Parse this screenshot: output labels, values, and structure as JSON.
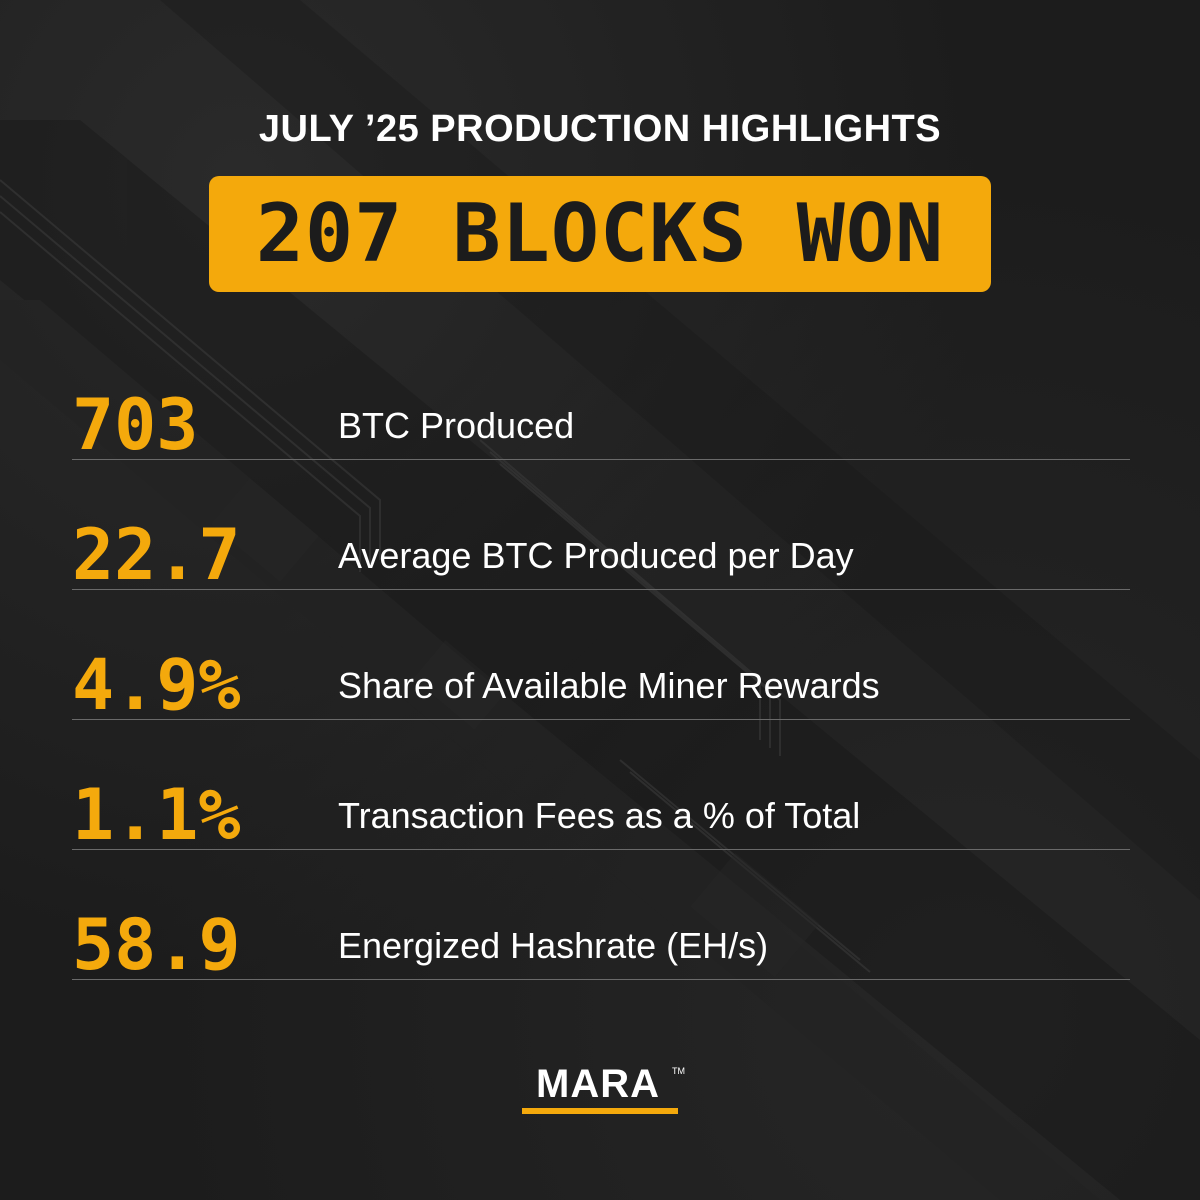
{
  "header": {
    "title": "JULY ’25 PRODUCTION HIGHLIGHTS",
    "banner": "207 BLOCKS WON"
  },
  "stats": [
    {
      "value": "703",
      "label": "BTC Produced"
    },
    {
      "value": "22.7",
      "label": "Average BTC Produced per Day"
    },
    {
      "value": "4.9%",
      "label": "Share of Available Miner Rewards"
    },
    {
      "value": "1.1%",
      "label": "Transaction Fees as a % of Total"
    },
    {
      "value": "58.9",
      "label": "Energized Hashrate (EH/s)"
    }
  ],
  "logo": {
    "text": "MARA",
    "trademark": "TM"
  },
  "colors": {
    "accent": "#f4a90c",
    "background": "#1c1c1c",
    "text": "#ffffff",
    "divider": "#6a6a6a"
  }
}
